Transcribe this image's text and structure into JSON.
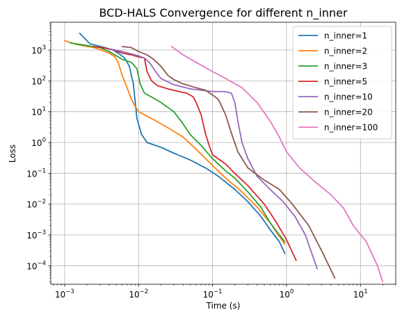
{
  "chart_data": {
    "type": "line",
    "title": "BCD-HALS Convergence for different n_inner",
    "xlabel": "Time (s)",
    "ylabel": "Loss",
    "xscale": "log",
    "yscale": "log",
    "xlim": [
      0.00065,
      30
    ],
    "ylim": [
      2.5e-05,
      8000
    ],
    "grid": true,
    "legend_position": "top-right",
    "x_ticks": [
      {
        "value": 0.001,
        "base": "10",
        "exp": "−3"
      },
      {
        "value": 0.01,
        "base": "10",
        "exp": "−2"
      },
      {
        "value": 0.1,
        "base": "10",
        "exp": "−1"
      },
      {
        "value": 1,
        "base": "10",
        "exp": "0"
      },
      {
        "value": 10,
        "base": "10",
        "exp": "1"
      }
    ],
    "y_ticks": [
      {
        "value": 0.0001,
        "base": "10",
        "exp": "−4"
      },
      {
        "value": 0.001,
        "base": "10",
        "exp": "−3"
      },
      {
        "value": 0.01,
        "base": "10",
        "exp": "−2"
      },
      {
        "value": 0.1,
        "base": "10",
        "exp": "−1"
      },
      {
        "value": 1,
        "base": "10",
        "exp": "0"
      },
      {
        "value": 10,
        "base": "10",
        "exp": "1"
      },
      {
        "value": 100,
        "base": "10",
        "exp": "2"
      },
      {
        "value": 1000,
        "base": "10",
        "exp": "3"
      }
    ],
    "series": [
      {
        "name": "n_inner=1",
        "color": "#1f77b4",
        "points": [
          [
            0.0016,
            3500
          ],
          [
            0.0022,
            1600
          ],
          [
            0.0035,
            1200
          ],
          [
            0.0045,
            1000
          ],
          [
            0.0055,
            750
          ],
          [
            0.0065,
            550
          ],
          [
            0.0075,
            300
          ],
          [
            0.0085,
            80
          ],
          [
            0.0095,
            6
          ],
          [
            0.011,
            1.8
          ],
          [
            0.013,
            1.0
          ],
          [
            0.02,
            0.7
          ],
          [
            0.03,
            0.45
          ],
          [
            0.05,
            0.27
          ],
          [
            0.08,
            0.15
          ],
          [
            0.12,
            0.08
          ],
          [
            0.2,
            0.03
          ],
          [
            0.3,
            0.012
          ],
          [
            0.45,
            0.004
          ],
          [
            0.6,
            0.0015
          ],
          [
            0.8,
            0.0006
          ],
          [
            0.95,
            0.00025
          ]
        ]
      },
      {
        "name": "n_inner=2",
        "color": "#ff7f0e",
        "points": [
          [
            0.001,
            2000
          ],
          [
            0.0015,
            1500
          ],
          [
            0.0025,
            1200
          ],
          [
            0.004,
            800
          ],
          [
            0.0048,
            600
          ],
          [
            0.0053,
            400
          ],
          [
            0.006,
            150
          ],
          [
            0.007,
            60
          ],
          [
            0.008,
            25
          ],
          [
            0.009,
            15
          ],
          [
            0.01,
            10
          ],
          [
            0.015,
            6
          ],
          [
            0.025,
            3
          ],
          [
            0.04,
            1.5
          ],
          [
            0.06,
            0.6
          ],
          [
            0.1,
            0.18
          ],
          [
            0.15,
            0.07
          ],
          [
            0.25,
            0.025
          ],
          [
            0.4,
            0.008
          ],
          [
            0.6,
            0.0025
          ],
          [
            0.8,
            0.0009
          ],
          [
            0.95,
            0.0005
          ]
        ]
      },
      {
        "name": "n_inner=3",
        "color": "#2ca02c",
        "points": [
          [
            0.0012,
            1700
          ],
          [
            0.002,
            1400
          ],
          [
            0.003,
            1200
          ],
          [
            0.004,
            900
          ],
          [
            0.006,
            500
          ],
          [
            0.008,
            400
          ],
          [
            0.0095,
            250
          ],
          [
            0.0105,
            80
          ],
          [
            0.012,
            40
          ],
          [
            0.015,
            30
          ],
          [
            0.02,
            20
          ],
          [
            0.03,
            10
          ],
          [
            0.04,
            4
          ],
          [
            0.05,
            1.8
          ],
          [
            0.07,
            0.8
          ],
          [
            0.1,
            0.3
          ],
          [
            0.15,
            0.12
          ],
          [
            0.2,
            0.07
          ],
          [
            0.3,
            0.025
          ],
          [
            0.45,
            0.008
          ],
          [
            0.6,
            0.0025
          ],
          [
            0.8,
            0.001
          ],
          [
            0.95,
            0.0006
          ]
        ]
      },
      {
        "name": "n_inner=5",
        "color": "#d62728",
        "points": [
          [
            0.0025,
            1300
          ],
          [
            0.004,
            1100
          ],
          [
            0.006,
            800
          ],
          [
            0.008,
            700
          ],
          [
            0.01,
            600
          ],
          [
            0.012,
            550
          ],
          [
            0.013,
            200
          ],
          [
            0.015,
            100
          ],
          [
            0.018,
            70
          ],
          [
            0.025,
            55
          ],
          [
            0.035,
            45
          ],
          [
            0.045,
            40
          ],
          [
            0.055,
            30
          ],
          [
            0.06,
            20
          ],
          [
            0.07,
            8
          ],
          [
            0.08,
            2
          ],
          [
            0.09,
            0.8
          ],
          [
            0.1,
            0.4
          ],
          [
            0.15,
            0.2
          ],
          [
            0.2,
            0.1
          ],
          [
            0.3,
            0.04
          ],
          [
            0.5,
            0.01
          ],
          [
            0.7,
            0.003
          ],
          [
            1.0,
            0.0007
          ],
          [
            1.35,
            0.00015
          ]
        ]
      },
      {
        "name": "n_inner=10",
        "color": "#9467bd",
        "points": [
          [
            0.004,
            1100
          ],
          [
            0.006,
            900
          ],
          [
            0.008,
            750
          ],
          [
            0.01,
            650
          ],
          [
            0.012,
            550
          ],
          [
            0.014,
            400
          ],
          [
            0.017,
            200
          ],
          [
            0.02,
            120
          ],
          [
            0.03,
            75
          ],
          [
            0.05,
            55
          ],
          [
            0.08,
            48
          ],
          [
            0.1,
            45
          ],
          [
            0.15,
            45
          ],
          [
            0.18,
            40
          ],
          [
            0.2,
            20
          ],
          [
            0.22,
            5
          ],
          [
            0.25,
            1
          ],
          [
            0.3,
            0.3
          ],
          [
            0.4,
            0.08
          ],
          [
            0.6,
            0.03
          ],
          [
            0.9,
            0.012
          ],
          [
            1.3,
            0.004
          ],
          [
            1.8,
            0.001
          ],
          [
            2.6,
            8e-05
          ]
        ]
      },
      {
        "name": "n_inner=20",
        "color": "#8c564b",
        "points": [
          [
            0.006,
            1300
          ],
          [
            0.008,
            1200
          ],
          [
            0.01,
            900
          ],
          [
            0.013,
            700
          ],
          [
            0.016,
            500
          ],
          [
            0.02,
            300
          ],
          [
            0.025,
            150
          ],
          [
            0.03,
            110
          ],
          [
            0.04,
            80
          ],
          [
            0.06,
            60
          ],
          [
            0.08,
            50
          ],
          [
            0.1,
            35
          ],
          [
            0.12,
            25
          ],
          [
            0.15,
            8
          ],
          [
            0.18,
            2
          ],
          [
            0.22,
            0.5
          ],
          [
            0.3,
            0.15
          ],
          [
            0.5,
            0.06
          ],
          [
            0.8,
            0.03
          ],
          [
            1.2,
            0.01
          ],
          [
            2.0,
            0.002
          ],
          [
            3.0,
            0.0003
          ],
          [
            4.5,
            4e-05
          ]
        ]
      },
      {
        "name": "n_inner=100",
        "color": "#e377c2",
        "points": [
          [
            0.028,
            1300
          ],
          [
            0.04,
            700
          ],
          [
            0.06,
            400
          ],
          [
            0.1,
            200
          ],
          [
            0.15,
            120
          ],
          [
            0.25,
            60
          ],
          [
            0.4,
            20
          ],
          [
            0.6,
            5
          ],
          [
            0.8,
            1.5
          ],
          [
            1.0,
            0.5
          ],
          [
            1.5,
            0.15
          ],
          [
            2.5,
            0.05
          ],
          [
            4,
            0.02
          ],
          [
            6,
            0.007
          ],
          [
            8,
            0.002
          ],
          [
            12,
            0.0006
          ],
          [
            17,
            0.0001
          ],
          [
            20,
            3e-05
          ]
        ]
      }
    ]
  }
}
